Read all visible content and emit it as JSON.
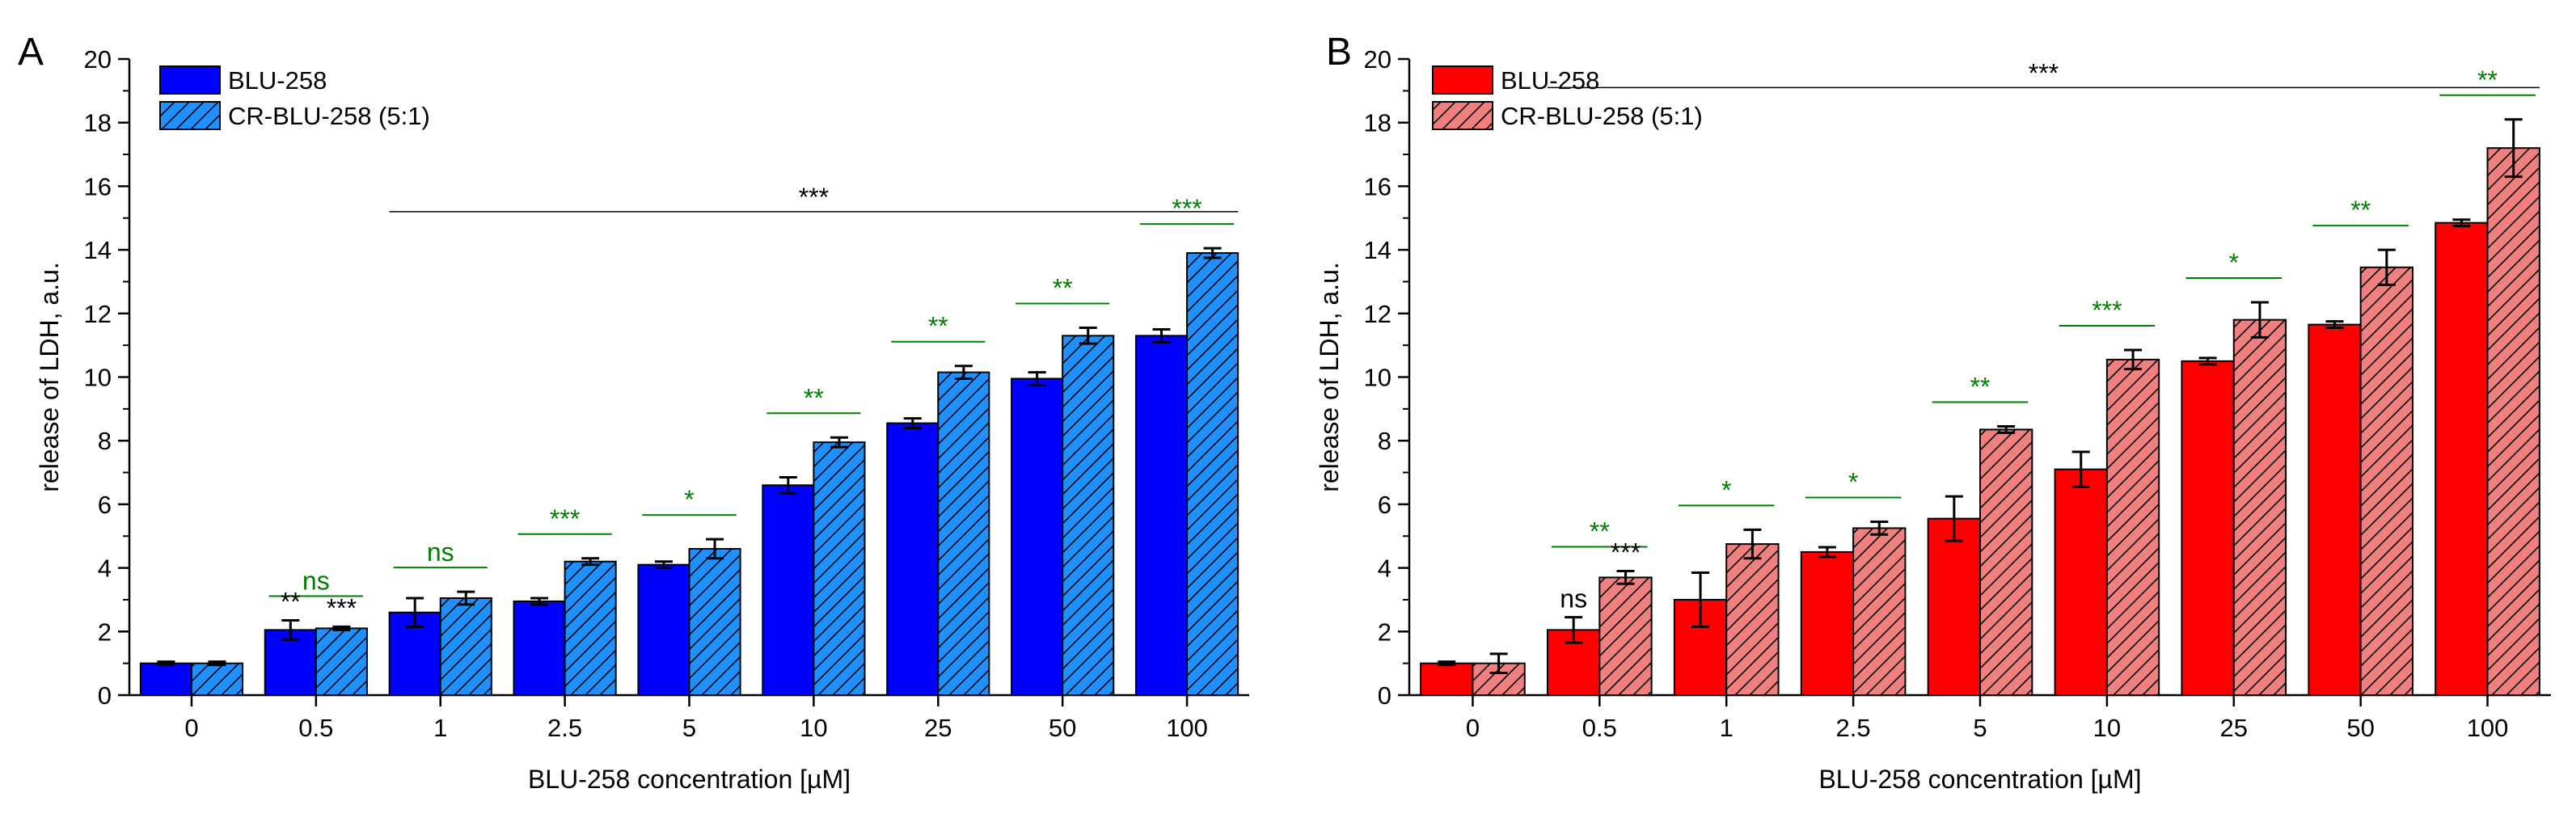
{
  "chart_data": [
    {
      "panel_label": "A",
      "type": "bar",
      "categories": [
        "0",
        "0.5",
        "1",
        "2.5",
        "5",
        "10",
        "25",
        "50",
        "100"
      ],
      "xlabel": "BLU-258 concentration [µM]",
      "ylabel": "release of LDH, a.u.",
      "ylim": [
        0,
        20
      ],
      "yticks": [
        "0",
        "2",
        "4",
        "6",
        "8",
        "10",
        "12",
        "14",
        "16",
        "18",
        "20"
      ],
      "legend_position": "top-left",
      "series": [
        {
          "name": "BLU-258",
          "pattern": "solid",
          "color": "#0000ff",
          "values": [
            1.0,
            2.05,
            2.6,
            2.95,
            4.1,
            6.6,
            8.55,
            9.95,
            11.3
          ],
          "errors": [
            0.05,
            0.3,
            0.45,
            0.1,
            0.1,
            0.25,
            0.15,
            0.2,
            0.2
          ]
        },
        {
          "name": "CR-BLU-258 (5:1)",
          "pattern": "hatched",
          "color": "#1e90ff",
          "values": [
            1.0,
            2.1,
            3.05,
            4.2,
            4.6,
            7.95,
            10.15,
            11.3,
            13.9
          ],
          "errors": [
            0.05,
            0.05,
            0.2,
            0.1,
            0.3,
            0.15,
            0.2,
            0.25,
            0.15
          ]
        }
      ],
      "pair_annotations": [
        {
          "category": "0.5",
          "text": "ns"
        },
        {
          "category": "1",
          "text": "ns"
        },
        {
          "category": "2.5",
          "text": "***"
        },
        {
          "category": "5",
          "text": "*"
        },
        {
          "category": "10",
          "text": "**"
        },
        {
          "category": "25",
          "text": "**"
        },
        {
          "category": "50",
          "text": "**"
        },
        {
          "category": "100",
          "text": "***"
        }
      ],
      "bar_annotations": [
        {
          "category": "0.5",
          "series": 0,
          "text": "**"
        },
        {
          "category": "0.5",
          "series": 1,
          "text": "***"
        }
      ],
      "span_annotation": {
        "from": "1",
        "to": "100",
        "y": 15.2,
        "text": "***"
      },
      "annotation_color": "#008000"
    },
    {
      "panel_label": "B",
      "type": "bar",
      "categories": [
        "0",
        "0.5",
        "1",
        "2.5",
        "5",
        "10",
        "25",
        "50",
        "100"
      ],
      "xlabel": "BLU-258 concentration [µM]",
      "ylabel": "release of LDH, a.u.",
      "ylim": [
        0,
        20
      ],
      "yticks": [
        "0",
        "2",
        "4",
        "6",
        "8",
        "10",
        "12",
        "14",
        "16",
        "18",
        "20"
      ],
      "legend_position": "top-left",
      "series": [
        {
          "name": "BLU-258",
          "pattern": "solid",
          "color": "#ff0000",
          "values": [
            1.0,
            2.05,
            3.0,
            4.5,
            5.55,
            7.1,
            10.5,
            11.65,
            14.85
          ],
          "errors": [
            0.05,
            0.4,
            0.85,
            0.15,
            0.7,
            0.55,
            0.1,
            0.1,
            0.1
          ]
        },
        {
          "name": "CR-BLU-258 (5:1)",
          "pattern": "hatched",
          "color": "#f08080",
          "values": [
            1.0,
            3.7,
            4.75,
            5.25,
            8.35,
            10.55,
            11.8,
            13.45,
            17.2
          ],
          "errors": [
            0.3,
            0.2,
            0.45,
            0.2,
            0.1,
            0.3,
            0.55,
            0.55,
            0.9
          ]
        }
      ],
      "pair_annotations": [
        {
          "category": "0.5",
          "text": "**"
        },
        {
          "category": "1",
          "text": "*"
        },
        {
          "category": "2.5",
          "text": "*"
        },
        {
          "category": "5",
          "text": "**"
        },
        {
          "category": "10",
          "text": "***"
        },
        {
          "category": "25",
          "text": "*"
        },
        {
          "category": "50",
          "text": "**"
        },
        {
          "category": "100",
          "text": "**"
        }
      ],
      "bar_annotations": [
        {
          "category": "0.5",
          "series": 0,
          "text": "ns"
        },
        {
          "category": "0.5",
          "series": 1,
          "text": "***"
        }
      ],
      "span_annotation": {
        "from": "0.5",
        "to": "100",
        "y": 19.1,
        "text": "***"
      },
      "annotation_color": "#008000"
    }
  ]
}
